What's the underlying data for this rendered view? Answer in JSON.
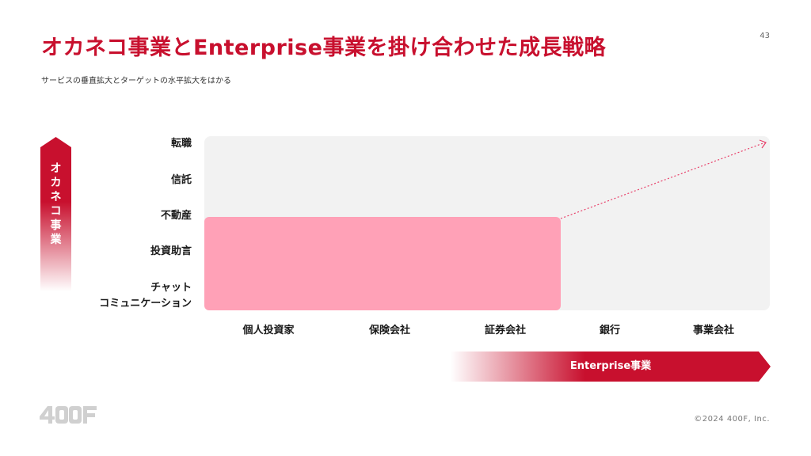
{
  "page_number": "43",
  "title": "オカネコ事業とEnterprise事業を掛け合わせた成長戦略",
  "subtitle": "サービスの垂直拡大とターゲットの水平拡大をはかる",
  "vertical_axis": {
    "label": [
      "オ",
      "カ",
      "ネ",
      "コ",
      "事",
      "業"
    ],
    "items": [
      "転職",
      "信託",
      "不動産",
      "投資助言",
      "チャット",
      "コミュニケーション"
    ]
  },
  "horizontal_axis": {
    "label": "Enterprise事業",
    "items": [
      "個人投資家",
      "保険会社",
      "証券会社",
      "銀行",
      "事業会社"
    ]
  },
  "colors": {
    "accent": "#c8102e",
    "fill": "#ffa1b7",
    "plot_bg": "#f2f2f2"
  },
  "logo": "400F",
  "copyright": "©2024 400F, Inc."
}
